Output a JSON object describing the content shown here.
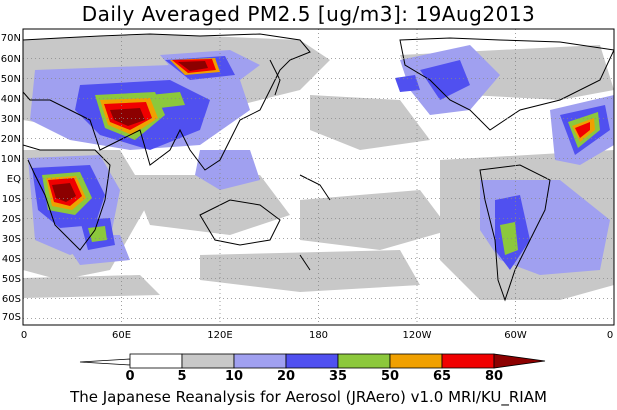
{
  "title": "Daily Averaged PM2.5 [ug/m3]: 19Aug2013",
  "footer": "The Japanese Reanalysis for Aerosol (JRAero) v1.0 MRI/KU_RIAM",
  "lat_labels": [
    "70N",
    "60N",
    "50N",
    "40N",
    "30N",
    "20N",
    "10N",
    "EQ",
    "10S",
    "20S",
    "30S",
    "40S",
    "50S",
    "60S",
    "70S"
  ],
  "lon_labels": [
    "0",
    "60E",
    "120E",
    "180",
    "120W",
    "60W",
    "0"
  ],
  "colorbar": {
    "ticks": [
      "0",
      "5",
      "10",
      "20",
      "35",
      "50",
      "65",
      "80"
    ],
    "colors": [
      "#ffffff",
      "#c8c8c8",
      "#a0a0f0",
      "#5050f0",
      "#8cc83c",
      "#f0a000",
      "#f00000",
      "#8c0000"
    ]
  }
}
